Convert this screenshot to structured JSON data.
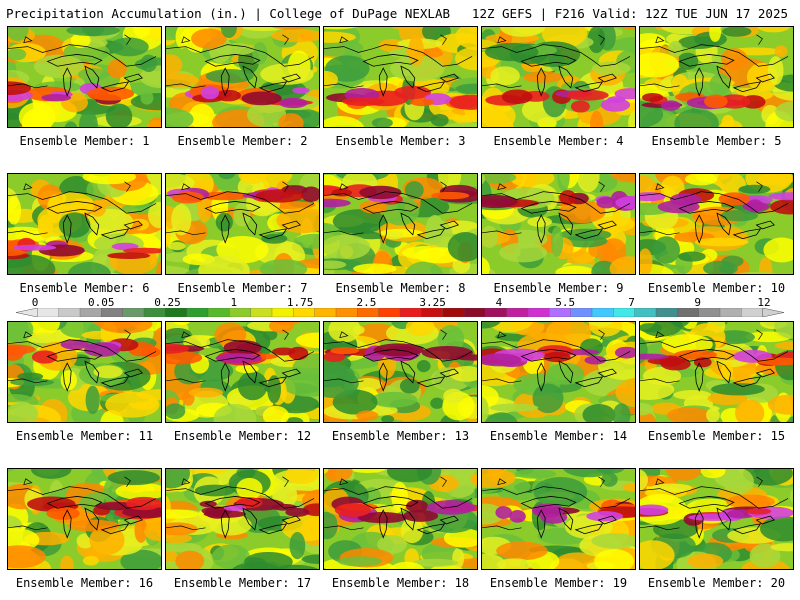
{
  "header": {
    "left": "Precipitation Accumulation (in.) | College of DuPage NEXLAB",
    "right": "12Z GEFS | F216 Valid: 12Z TUE JUN 17 2025"
  },
  "colorbar": {
    "labels": [
      "0",
      "0.05",
      "0.25",
      "1",
      "1.75",
      "2.5",
      "3.25",
      "4",
      "5.5",
      "7",
      "9",
      "12"
    ],
    "colors": [
      "#e6e6e6",
      "#c9c9c9",
      "#a6a6a6",
      "#828282",
      "#6a9a6a",
      "#3d8f3d",
      "#1f7a1f",
      "#2e9e2e",
      "#56b82b",
      "#8ccc2a",
      "#c8e020",
      "#f2f200",
      "#ffd800",
      "#ffb400",
      "#ff9000",
      "#ff6a00",
      "#ff4000",
      "#e81c1c",
      "#c81010",
      "#a00a0a",
      "#8a0a2a",
      "#a01060",
      "#c020a0",
      "#d030d0",
      "#b070ff",
      "#7090ff",
      "#40c8ff",
      "#40e8e8",
      "#40c0c0",
      "#409090",
      "#707070",
      "#909090",
      "#b0b0b0",
      "#d0d0d0"
    ]
  },
  "members": [
    {
      "label": "Ensemble Member: 1"
    },
    {
      "label": "Ensemble Member: 2"
    },
    {
      "label": "Ensemble Member: 3"
    },
    {
      "label": "Ensemble Member: 4"
    },
    {
      "label": "Ensemble Member: 5"
    },
    {
      "label": "Ensemble Member: 6"
    },
    {
      "label": "Ensemble Member: 7"
    },
    {
      "label": "Ensemble Member: 8"
    },
    {
      "label": "Ensemble Member: 9"
    },
    {
      "label": "Ensemble Member: 10"
    },
    {
      "label": "Ensemble Member: 11"
    },
    {
      "label": "Ensemble Member: 12"
    },
    {
      "label": "Ensemble Member: 13"
    },
    {
      "label": "Ensemble Member: 14"
    },
    {
      "label": "Ensemble Member: 15"
    },
    {
      "label": "Ensemble Member: 16"
    },
    {
      "label": "Ensemble Member: 17"
    },
    {
      "label": "Ensemble Member: 18"
    },
    {
      "label": "Ensemble Member: 19"
    },
    {
      "label": "Ensemble Member: 20"
    }
  ]
}
